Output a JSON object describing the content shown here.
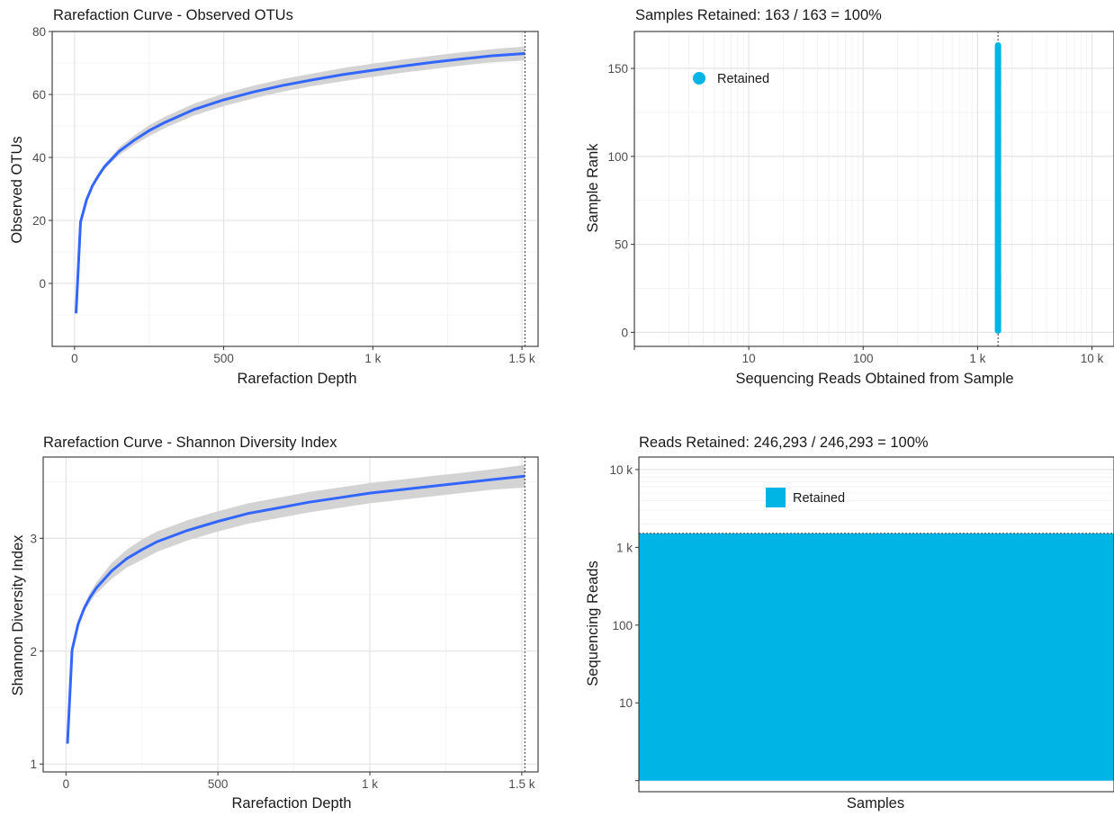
{
  "colors": {
    "curve": "#3366ff",
    "ribbon": "#d3d3d3",
    "retained": "#00b4e6"
  },
  "chart_data": [
    {
      "type": "line",
      "title": "Rarefaction Curve - Observed OTUs",
      "xlabel": "Rarefaction Depth",
      "ylabel": "Observed OTUs",
      "xlim": [
        -75,
        1530
      ],
      "ylim": [
        -20,
        80
      ],
      "xticks": [
        0,
        500,
        1000,
        1500
      ],
      "xtick_labels": [
        "0",
        "500",
        "1 k",
        "1.5 k"
      ],
      "yticks": [
        0,
        20,
        40,
        60,
        80
      ],
      "ytick_labels": [
        "0",
        "20",
        "40",
        "60",
        "80"
      ],
      "vline_x": 1510,
      "series": [
        {
          "x": [
            5,
            20,
            40,
            60,
            80,
            100,
            150,
            200,
            250,
            300,
            400,
            500,
            600,
            700,
            800,
            900,
            1000,
            1100,
            1200,
            1300,
            1400,
            1510
          ],
          "y": [
            -9.5,
            19.5,
            26.5,
            31,
            34.2,
            37,
            42,
            45.5,
            48.5,
            51,
            55.2,
            58.3,
            60.8,
            62.9,
            64.7,
            66.3,
            67.7,
            69,
            70.2,
            71.3,
            72.3,
            73
          ],
          "ymin": [
            -9.5,
            19.3,
            26.2,
            30.6,
            33.6,
            36.2,
            40.8,
            44,
            46.8,
            49.2,
            53.3,
            56.3,
            58.8,
            60.9,
            62.7,
            64.2,
            65.6,
            66.9,
            68.1,
            69.2,
            70.2,
            70.8
          ],
          "ymax": [
            -9.5,
            19.7,
            26.8,
            31.4,
            34.8,
            37.8,
            43.2,
            47,
            50.2,
            52.8,
            57.1,
            60.3,
            62.8,
            64.9,
            66.7,
            68.4,
            69.8,
            71.1,
            72.3,
            73.4,
            74.4,
            75.2
          ]
        }
      ]
    },
    {
      "type": "scatter",
      "title": "Samples Retained: 163 / 163 = 100%",
      "xlabel": "Sequencing Reads Obtained from Sample",
      "ylabel": "Sample Rank",
      "xscale": "log10",
      "xlim": [
        1,
        13000
      ],
      "ylim": [
        -8,
        171
      ],
      "xticks": [
        10,
        100,
        1000,
        10000
      ],
      "xtick_labels": [
        "10",
        "100",
        "1 k",
        "10 k"
      ],
      "yticks": [
        0,
        50,
        100,
        150
      ],
      "ytick_labels": [
        "0",
        "50",
        "100",
        "150"
      ],
      "vline_x": 1510,
      "points": {
        "x": 1510,
        "rank_from": 1,
        "rank_to": 163
      },
      "legend": {
        "label": "Retained",
        "position": "top-left"
      }
    },
    {
      "type": "line",
      "title": "Rarefaction Curve - Shannon Diversity Index",
      "xlabel": "Rarefaction Depth",
      "ylabel": "Shannon Diversity Index",
      "xlim": [
        -75,
        1530
      ],
      "ylim": [
        0.93,
        3.72
      ],
      "xticks": [
        0,
        500,
        1000,
        1500
      ],
      "xtick_labels": [
        "0",
        "500",
        "1 k",
        "1.5 k"
      ],
      "yticks": [
        1,
        2,
        3
      ],
      "ytick_labels": [
        "1",
        "2",
        "3"
      ],
      "vline_x": 1510,
      "series": [
        {
          "x": [
            5,
            20,
            40,
            60,
            80,
            100,
            150,
            200,
            250,
            300,
            400,
            500,
            600,
            700,
            800,
            900,
            1000,
            1100,
            1200,
            1300,
            1400,
            1510
          ],
          "y": [
            1.18,
            2.01,
            2.24,
            2.38,
            2.48,
            2.56,
            2.71,
            2.82,
            2.9,
            2.97,
            3.07,
            3.15,
            3.22,
            3.27,
            3.32,
            3.36,
            3.4,
            3.43,
            3.46,
            3.49,
            3.52,
            3.55
          ],
          "ymin": [
            1.18,
            2.0,
            2.22,
            2.35,
            2.44,
            2.51,
            2.64,
            2.74,
            2.81,
            2.88,
            2.98,
            3.06,
            3.13,
            3.18,
            3.23,
            3.27,
            3.31,
            3.34,
            3.37,
            3.4,
            3.43,
            3.45
          ],
          "ymax": [
            1.18,
            2.02,
            2.26,
            2.41,
            2.52,
            2.61,
            2.78,
            2.9,
            2.99,
            3.06,
            3.16,
            3.24,
            3.31,
            3.36,
            3.41,
            3.45,
            3.49,
            3.52,
            3.55,
            3.58,
            3.61,
            3.65
          ]
        }
      ]
    },
    {
      "type": "area",
      "title": "Reads Retained: 246,293 / 246,293 = 100%",
      "xlabel": "Samples",
      "ylabel": "Sequencing Reads",
      "yscale": "log10",
      "ylim": [
        0.72,
        14500
      ],
      "yticks": [
        10,
        100,
        1000,
        10000
      ],
      "ytick_labels": [
        "10",
        "100",
        "1 k",
        "10 k"
      ],
      "hline_y": 1510,
      "fill_from": 1,
      "fill_to": 1510,
      "legend": {
        "label": "Retained",
        "position": "top-left"
      }
    }
  ]
}
